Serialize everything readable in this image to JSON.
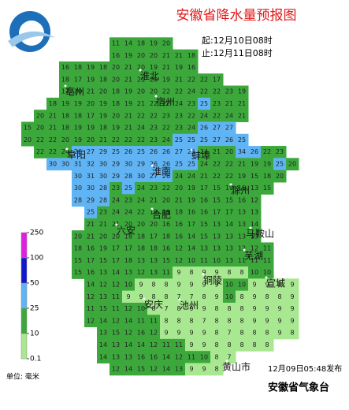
{
  "header": {
    "title": "安徽省降水量预报图",
    "start": "起:12月10日08时",
    "end": "止:12月11日08时"
  },
  "legend": {
    "ticks": [
      0.1,
      10,
      25,
      50,
      100,
      250
    ],
    "colors": [
      "#a8e890",
      "#3ca83c",
      "#60b4f4",
      "#1018c8",
      "#e020e0"
    ],
    "unit": "单位: 毫米"
  },
  "footer": {
    "issued": "12月09日05:48发布",
    "agency": "安徽省气象台"
  },
  "cities": [
    "淮北",
    "亳州",
    "宿州",
    "阜阳",
    "蚌埠",
    "淮南",
    "滁州",
    "合肥",
    "六安",
    "马鞍山",
    "芜湖",
    "铜陵",
    "宣城",
    "安庆",
    "池州",
    "黄山市"
  ],
  "grid": {
    "rows": [
      {
        "start": 8,
        "values": [
          11,
          14,
          18,
          19,
          20
        ]
      },
      {
        "start": 8,
        "values": [
          16,
          19,
          20,
          20,
          21,
          21,
          18
        ]
      },
      {
        "start": 4,
        "values": [
          16,
          18,
          19,
          18,
          20,
          21,
          20,
          19,
          21,
          19,
          16
        ]
      },
      {
        "start": 4,
        "values": [
          18,
          17,
          19,
          18,
          20,
          21,
          21,
          20,
          19,
          21,
          22,
          22,
          17
        ]
      },
      {
        "start": 4,
        "values": [
          17,
          20,
          21,
          20,
          18,
          19,
          20,
          20,
          22,
          22,
          24,
          22,
          22,
          23,
          19
        ]
      },
      {
        "start": 3,
        "values": [
          18,
          19,
          19,
          20,
          19,
          18,
          19,
          21,
          22,
          22,
          24,
          23,
          25,
          23,
          21,
          21
        ]
      },
      {
        "start": 2,
        "values": [
          20,
          21,
          18,
          18,
          17,
          19,
          20,
          21,
          22,
          22,
          23,
          23,
          22,
          24,
          22,
          24,
          21
        ]
      },
      {
        "start": 1,
        "values": [
          15,
          20,
          21,
          18,
          19,
          19,
          18,
          19,
          21,
          24,
          23,
          22,
          23,
          24,
          26,
          27,
          27
        ]
      },
      {
        "start": 1,
        "values": [
          20,
          22,
          22,
          20,
          19,
          20,
          21,
          22,
          22,
          22,
          23,
          24,
          25,
          25,
          25,
          27,
          26,
          25
        ]
      },
      {
        "start": 2,
        "values": [
          22,
          22,
          24,
          26,
          27,
          29,
          25,
          26,
          25,
          26,
          26,
          27,
          25,
          24,
          21,
          20,
          34,
          26,
          22,
          23
        ]
      },
      {
        "start": 3,
        "values": [
          30,
          30,
          31,
          32,
          30,
          29,
          30,
          29,
          26,
          26,
          25,
          25,
          24,
          22,
          22,
          21,
          19,
          19,
          25,
          20
        ]
      },
      {
        "start": 5,
        "values": [
          30,
          31,
          30,
          29,
          28,
          30,
          27,
          26,
          24,
          24,
          21,
          22,
          22,
          19,
          15,
          18,
          20
        ]
      },
      {
        "start": 5,
        "values": [
          30,
          30,
          28,
          23,
          25,
          24,
          23,
          22,
          20,
          19,
          17,
          15,
          19,
          16,
          13,
          15
        ]
      },
      {
        "start": 5,
        "values": [
          28,
          29,
          28,
          24,
          23,
          24,
          21,
          20,
          21,
          19,
          16,
          15,
          15,
          16,
          12
        ]
      },
      {
        "start": 6,
        "values": [
          25,
          23,
          24,
          24,
          22,
          19,
          19,
          18,
          16,
          16,
          17,
          17,
          13,
          13
        ]
      },
      {
        "start": 6,
        "values": [
          21,
          21,
          21,
          20,
          20,
          20,
          16,
          16,
          17,
          15,
          13,
          14,
          13,
          14
        ]
      },
      {
        "start": 5,
        "values": [
          20,
          21,
          20,
          20,
          18,
          18,
          17,
          18,
          16,
          14,
          15,
          13,
          13,
          13,
          13
        ]
      },
      {
        "start": 5,
        "values": [
          18,
          16,
          19,
          17,
          17,
          18,
          18,
          16,
          12,
          14,
          13,
          13,
          13,
          12,
          12,
          11
        ]
      },
      {
        "start": 5,
        "values": [
          15,
          17,
          15,
          17,
          18,
          13,
          13,
          15,
          12,
          10,
          11,
          10,
          13,
          11,
          11,
          11
        ]
      },
      {
        "start": 5,
        "values": [
          15,
          16,
          13,
          14,
          13,
          12,
          13,
          11,
          9,
          8,
          9,
          9,
          8,
          8,
          10,
          10
        ]
      },
      {
        "start": 6,
        "values": [
          14,
          12,
          12,
          10,
          9,
          8,
          8,
          9,
          9,
          9,
          9,
          10,
          10,
          9,
          9,
          8,
          9
        ]
      },
      {
        "start": 6,
        "values": [
          12,
          13,
          11,
          9,
          9,
          8,
          8,
          7,
          7,
          8,
          9,
          10,
          8,
          9,
          8,
          8,
          9
        ]
      },
      {
        "start": 6,
        "values": [
          11,
          15,
          11,
          12,
          10,
          8,
          7,
          8,
          9,
          9,
          8,
          8,
          8,
          9,
          9,
          9,
          9
        ]
      },
      {
        "start": 6,
        "values": [
          12,
          14,
          12,
          14,
          11,
          11,
          8,
          8,
          8,
          7,
          8,
          8,
          8,
          9,
          9,
          9,
          9
        ]
      },
      {
        "start": 7,
        "values": [
          13,
          15,
          12,
          16,
          12,
          9,
          9,
          9,
          9,
          8,
          7,
          8,
          8,
          8,
          9,
          8
        ]
      },
      {
        "start": 7,
        "values": [
          14,
          13,
          14,
          14,
          12,
          11,
          11,
          9,
          9,
          8,
          8,
          8,
          8,
          8
        ]
      },
      {
        "start": 7,
        "values": [
          14,
          13,
          13,
          16,
          16,
          14,
          12,
          11,
          10,
          8,
          7
        ]
      },
      {
        "start": 8,
        "values": [
          12,
          14,
          15,
          12,
          14,
          13,
          9,
          9,
          8
        ]
      }
    ]
  }
}
